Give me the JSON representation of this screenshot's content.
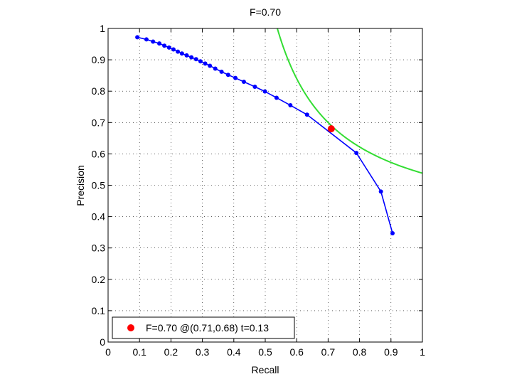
{
  "chart_data": {
    "type": "line",
    "title": "F=0.70",
    "xlabel": "Recall",
    "ylabel": "Precision",
    "xlim": [
      0,
      1
    ],
    "ylim": [
      0,
      1
    ],
    "grid": true,
    "xticks": [
      0,
      0.1,
      0.2,
      0.3,
      0.4,
      0.5,
      0.6,
      0.7,
      0.8,
      0.9,
      1
    ],
    "yticks": [
      0,
      0.1,
      0.2,
      0.3,
      0.4,
      0.5,
      0.6,
      0.7,
      0.8,
      0.9,
      1
    ],
    "xtick_labels": [
      "0",
      "0.1",
      "0.2",
      "0.3",
      "0.4",
      "0.5",
      "0.6",
      "0.7",
      "0.8",
      "0.9",
      "1"
    ],
    "ytick_labels": [
      "0",
      "0.1",
      "0.2",
      "0.3",
      "0.4",
      "0.5",
      "0.6",
      "0.7",
      "0.8",
      "0.9",
      "1"
    ],
    "series": [
      {
        "kind": "pr-curve",
        "color": "#0000ff",
        "x": [
          0.093,
          0.122,
          0.143,
          0.163,
          0.179,
          0.194,
          0.208,
          0.222,
          0.235,
          0.25,
          0.265,
          0.28,
          0.294,
          0.309,
          0.324,
          0.341,
          0.361,
          0.382,
          0.405,
          0.432,
          0.467,
          0.499,
          0.536,
          0.58,
          0.633,
          0.79,
          0.868,
          0.905
        ],
        "y": [
          0.972,
          0.965,
          0.958,
          0.952,
          0.945,
          0.939,
          0.933,
          0.926,
          0.92,
          0.914,
          0.908,
          0.902,
          0.895,
          0.888,
          0.881,
          0.872,
          0.862,
          0.852,
          0.842,
          0.83,
          0.814,
          0.799,
          0.779,
          0.755,
          0.725,
          0.603,
          0.48,
          0.347
        ]
      },
      {
        "kind": "iso-f-curve",
        "color": "#33dd33",
        "f": 0.7
      }
    ],
    "highlight_point": {
      "color": "#ff0000",
      "x": 0.71,
      "y": 0.68
    },
    "legend": {
      "position": "bottom-left",
      "text": "F=0.70 @(0.71,0.68) t=0.13"
    }
  }
}
